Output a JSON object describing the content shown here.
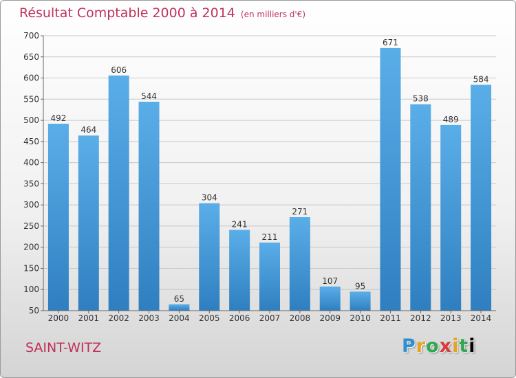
{
  "header": {
    "title": "Résultat Comptable 2000 à 2014",
    "subtitle": "(en milliers d'€)"
  },
  "footer": {
    "commune": "SAINT-WITZ",
    "logo_letters": [
      "P",
      "r",
      "o",
      "x",
      "i",
      "t",
      "i"
    ]
  },
  "chart_data": {
    "type": "bar",
    "title": "Résultat Comptable 2000 à 2014",
    "subtitle": "(en milliers d'€)",
    "categories": [
      "2000",
      "2001",
      "2002",
      "2003",
      "2004",
      "2005",
      "2006",
      "2007",
      "2008",
      "2009",
      "2010",
      "2011",
      "2012",
      "2013",
      "2014"
    ],
    "values": [
      492,
      464,
      606,
      544,
      65,
      304,
      241,
      211,
      271,
      107,
      95,
      671,
      538,
      489,
      584
    ],
    "yticks": [
      50,
      100,
      150,
      200,
      250,
      300,
      350,
      400,
      450,
      500,
      550,
      600,
      650,
      700
    ],
    "ylim": [
      50,
      700
    ],
    "grid": true,
    "bar_color_top": "#5aaee8",
    "bar_color_bottom": "#2f7fc0",
    "grid_color": "#c8c8c8"
  }
}
